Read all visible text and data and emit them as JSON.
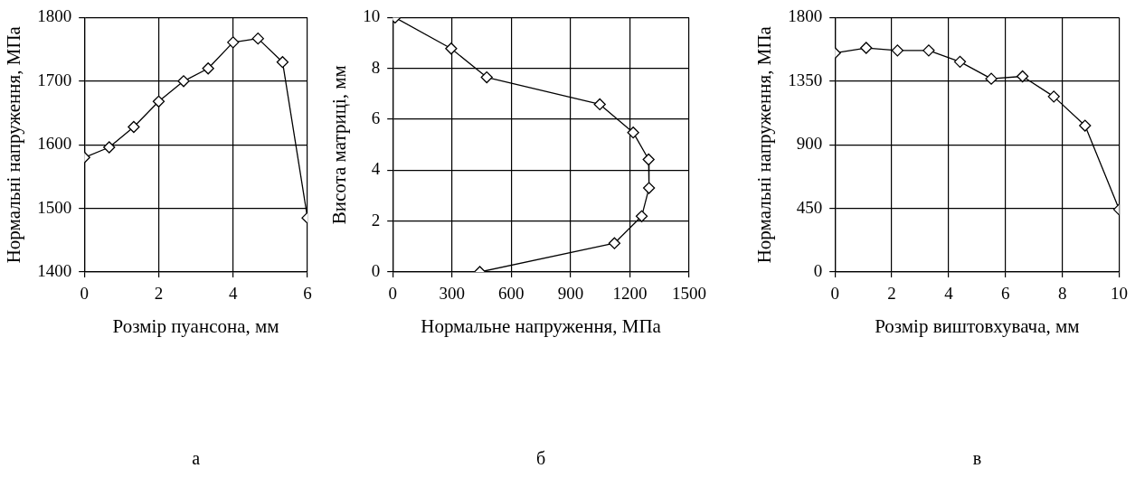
{
  "chart_data": [
    {
      "type": "line",
      "xlabel": "Розмір пуансона, мм",
      "ylabel": "Нормальні напруження, МПа",
      "x": [
        0,
        0.67,
        1.33,
        2,
        2.67,
        3.33,
        4,
        4.67,
        5.33,
        6
      ],
      "series": [
        {
          "color": "#000000",
          "values": [
            1580,
            1596,
            1628,
            1668,
            1700,
            1720,
            1761,
            1767,
            1730,
            1485
          ]
        }
      ],
      "xlim": [
        0,
        6
      ],
      "xticks": [
        0,
        2,
        4,
        6
      ],
      "ylim": [
        1400,
        1800
      ],
      "yticks": [
        1400,
        1500,
        1600,
        1700,
        1800
      ],
      "grid": true,
      "marker": "diamond",
      "annotations": [
        "а"
      ]
    },
    {
      "type": "line",
      "xlabel": "Нормальне напруження, МПа",
      "ylabel": "Висота матриці, мм",
      "x": [
        12,
        296,
        476,
        1048,
        1217,
        1295,
        1297,
        1260,
        1122,
        441
      ],
      "series": [
        {
          "color": "#000000",
          "values": [
            10,
            8.78,
            7.65,
            6.59,
            5.48,
            4.42,
            3.3,
            2.19,
            1.13,
            0
          ]
        }
      ],
      "xlim": [
        0,
        1500
      ],
      "xticks": [
        0,
        300,
        600,
        900,
        1200,
        1500
      ],
      "ylim": [
        0,
        10
      ],
      "yticks": [
        0,
        2,
        4,
        6,
        8,
        10
      ],
      "grid": true,
      "marker": "diamond",
      "annotations": [
        "б"
      ]
    },
    {
      "type": "line",
      "xlabel": "Розмір виштовхувача, мм",
      "ylabel": "Нормальні напруження, МПа",
      "x": [
        0,
        1.1,
        2.2,
        3.3,
        4.4,
        5.5,
        6.6,
        7.7,
        8.8,
        10
      ],
      "series": [
        {
          "color": "#000000",
          "values": [
            1549,
            1585,
            1567,
            1567,
            1487,
            1367,
            1384,
            1241,
            1035,
            442
          ]
        }
      ],
      "xlim": [
        0,
        10
      ],
      "xticks": [
        0,
        2,
        4,
        6,
        8,
        10
      ],
      "ylim": [
        0,
        1800
      ],
      "yticks": [
        0,
        450,
        900,
        1350,
        1800
      ],
      "grid": true,
      "marker": "diamond",
      "annotations": [
        "в"
      ]
    }
  ]
}
